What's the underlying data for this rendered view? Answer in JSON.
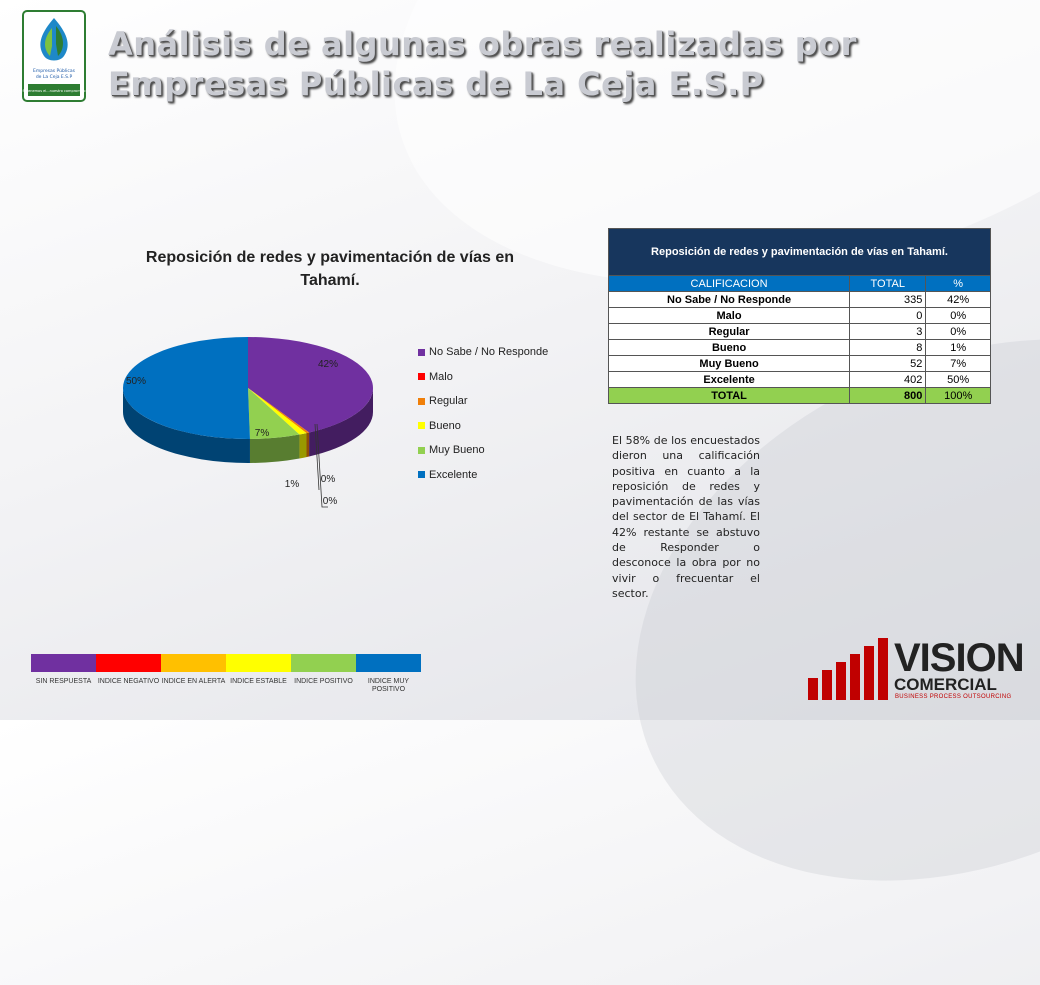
{
  "header": {
    "title_line1": "Análisis de algunas obras realizadas por",
    "title_line2": "Empresas Públicas de La Ceja E.S.P"
  },
  "logo": {
    "text_lines": [
      "Empresas Públicas",
      "de La Ceja E.S.P"
    ],
    "tagline": "Si tenemos el...nuestro compromiso"
  },
  "chart_data": {
    "type": "pie",
    "title": "Reposición de redes y pavimentación de vías en Tahamí.",
    "categories": [
      "No Sabe / No Responde",
      "Malo",
      "Regular",
      "Bueno",
      "Muy Bueno",
      "Excelente"
    ],
    "values": [
      335,
      0,
      3,
      8,
      52,
      402
    ],
    "data_labels": [
      "42%",
      "0%",
      "0%",
      "1%",
      "7%",
      "50%"
    ],
    "colors": [
      "#7030a0",
      "#ff0000",
      "#f07f09",
      "#ffff00",
      "#92d050",
      "#0070c0"
    ],
    "legend_position": "right"
  },
  "table": {
    "caption": "Reposición de redes y pavimentación de vías en Tahamí.",
    "headers": [
      "CALIFICACION",
      "TOTAL",
      "%"
    ],
    "rows": [
      [
        "No Sabe / No Responde",
        "335",
        "42%"
      ],
      [
        "Malo",
        "0",
        "0%"
      ],
      [
        "Regular",
        "3",
        "0%"
      ],
      [
        "Bueno",
        "8",
        "1%"
      ],
      [
        "Muy Bueno",
        "52",
        "7%"
      ],
      [
        "Excelente",
        "402",
        "50%"
      ]
    ],
    "total": [
      "TOTAL",
      "800",
      "100%"
    ]
  },
  "summary": "El 58% de los encuestados dieron una calificación positiva en cuanto a la reposición de redes y pavimentación de las vías del sector de El Tahamí. El 42% restante se abstuvo de Responder o desconoce la obra por no vivir o frecuentar el sector.",
  "scale": [
    {
      "label": "SIN RESPUESTA",
      "color": "#7030a0"
    },
    {
      "label": "INDICE NEGATIVO",
      "color": "#ff0000"
    },
    {
      "label": "INDICE EN ALERTA",
      "color": "#ffc000"
    },
    {
      "label": "INDICE ESTABLE",
      "color": "#ffff00"
    },
    {
      "label": "INDICE POSITIVO",
      "color": "#92d050"
    },
    {
      "label": "INDICE MUY POSITIVO",
      "color": "#0070c0"
    }
  ],
  "brand": {
    "name": "VISION",
    "sub": "COMERCIAL",
    "tagline": "BUSINESS PROCESS OUTSOURCING"
  }
}
